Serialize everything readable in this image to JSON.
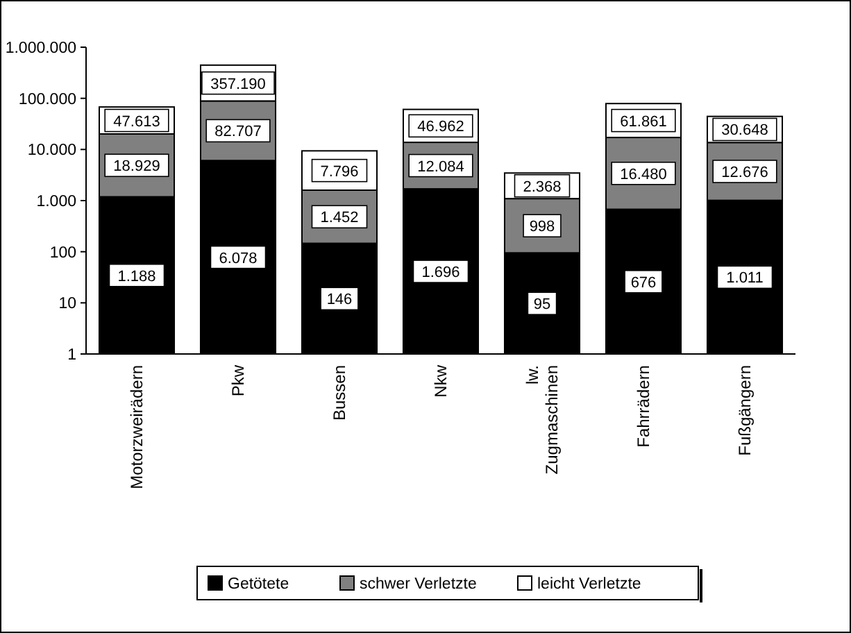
{
  "chart_data": {
    "type": "bar",
    "stacked": true,
    "log": "y",
    "legend": "bottom",
    "grid": false,
    "categories": [
      "Motorzweirädern",
      "Pkw",
      "Bussen",
      "Nkw",
      "lw. Zugmaschinen",
      "Fahrrädern",
      "Fußgängern"
    ],
    "ylim": [
      1,
      1000000
    ],
    "yticks": [
      {
        "value": 1,
        "label": "1"
      },
      {
        "value": 10,
        "label": "10"
      },
      {
        "value": 100,
        "label": "100"
      },
      {
        "value": 1000,
        "label": "1.000"
      },
      {
        "value": 10000,
        "label": "10.000"
      },
      {
        "value": 100000,
        "label": "100.000"
      },
      {
        "value": 1000000,
        "label": "1.000.000"
      }
    ],
    "series": [
      {
        "name": "Getötete",
        "color": "#000000",
        "values": [
          1188,
          6078,
          146,
          1696,
          95,
          676,
          1011
        ],
        "value_labels": [
          "1.188",
          "6.078",
          "146",
          "1.696",
          "95",
          "676",
          "1.011"
        ]
      },
      {
        "name": "schwer Verletzte",
        "color": "#808080",
        "values": [
          18929,
          82707,
          1452,
          12084,
          998,
          16480,
          12676
        ],
        "value_labels": [
          "18.929",
          "82.707",
          "1.452",
          "12.084",
          "998",
          "16.480",
          "12.676"
        ]
      },
      {
        "name": "leicht Verletzte",
        "color": "#ffffff",
        "values": [
          47613,
          357190,
          7796,
          46962,
          2368,
          61861,
          30648
        ],
        "value_labels": [
          "47.613",
          "357.190",
          "7.796",
          "46.962",
          "2.368",
          "61.861",
          "30.648"
        ]
      }
    ]
  }
}
